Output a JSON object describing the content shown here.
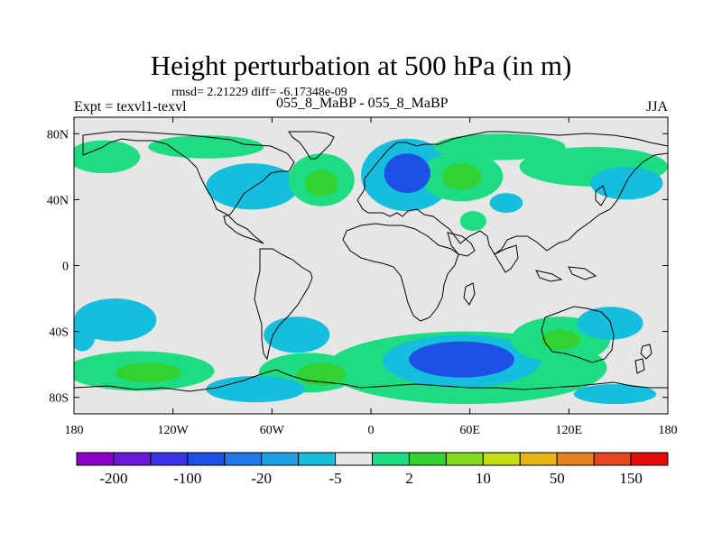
{
  "chart_data": {
    "type": "heatmap",
    "title": "Height perturbation at 500 hPa (in m)",
    "stats": "rmsd= 2.21229 diff= -6.17348e-09",
    "experiment": "Expt = texvl1-texvl",
    "cases": "055_8_MaBP - 055_8_MaBP",
    "season": "JJA",
    "x_axis": {
      "range": [
        -180,
        180
      ],
      "ticks": [
        -180,
        -120,
        -60,
        0,
        60,
        120,
        180
      ],
      "tick_labels": [
        "180",
        "120W",
        "60W",
        "0",
        "60E",
        "120E",
        "180"
      ]
    },
    "y_axis": {
      "range": [
        -90,
        90
      ],
      "ticks": [
        80,
        40,
        0,
        -40,
        -80
      ],
      "tick_labels": [
        "80N",
        "40N",
        "0",
        "40S",
        "80S"
      ]
    },
    "colorbar": {
      "colors": [
        "#8c00c8",
        "#6b18d8",
        "#3c32e6",
        "#1e50e6",
        "#1e78e6",
        "#1ea0e6",
        "#14bedc",
        "#e6e6e6",
        "#1edc82",
        "#32d232",
        "#82dc1e",
        "#c8dc14",
        "#e6b414",
        "#e6821e",
        "#e6461e",
        "#e60a0a"
      ],
      "labels": [
        "-200",
        "-100",
        "-20",
        "-5",
        "2",
        "10",
        "50",
        "150"
      ],
      "label_boundaries": [
        1,
        3,
        5,
        7,
        9,
        11,
        13,
        15
      ]
    },
    "anomalies": [
      {
        "lon": -162,
        "lat": 66,
        "rlon": 22,
        "rlat": 10,
        "level": 2
      },
      {
        "lon": -100,
        "lat": 72,
        "rlon": 35,
        "rlat": 7,
        "level": 2
      },
      {
        "lon": -72,
        "lat": 48,
        "rlon": 28,
        "rlat": 14,
        "level": -5
      },
      {
        "lon": -30,
        "lat": 52,
        "rlon": 20,
        "rlat": 16,
        "level": 2
      },
      {
        "lon": -30,
        "lat": 50,
        "rlon": 10,
        "rlat": 8,
        "level": 10
      },
      {
        "lon": 22,
        "lat": 55,
        "rlon": 28,
        "rlat": 22,
        "level": -5
      },
      {
        "lon": 22,
        "lat": 56,
        "rlon": 14,
        "rlat": 12,
        "level": -20
      },
      {
        "lon": 55,
        "lat": 54,
        "rlon": 25,
        "rlat": 15,
        "level": 2
      },
      {
        "lon": 55,
        "lat": 54,
        "rlon": 12,
        "rlat": 8,
        "level": 10
      },
      {
        "lon": 78,
        "lat": 72,
        "rlon": 40,
        "rlat": 8,
        "level": 2
      },
      {
        "lon": 135,
        "lat": 60,
        "rlon": 45,
        "rlat": 12,
        "level": 2
      },
      {
        "lon": 155,
        "lat": 50,
        "rlon": 22,
        "rlat": 10,
        "level": -5
      },
      {
        "lon": 82,
        "lat": 38,
        "rlon": 10,
        "rlat": 6,
        "level": -5
      },
      {
        "lon": 62,
        "lat": 27,
        "rlon": 8,
        "rlat": 6,
        "level": 2
      },
      {
        "lon": -155,
        "lat": -33,
        "rlon": 25,
        "rlat": 13,
        "level": -5
      },
      {
        "lon": -140,
        "lat": -64,
        "rlon": 45,
        "rlat": 12,
        "level": 2
      },
      {
        "lon": -135,
        "lat": -65,
        "rlon": 20,
        "rlat": 6,
        "level": 10
      },
      {
        "lon": -70,
        "lat": -75,
        "rlon": 30,
        "rlat": 8,
        "level": -5
      },
      {
        "lon": -45,
        "lat": -42,
        "rlon": 20,
        "rlat": 11,
        "level": -5
      },
      {
        "lon": -38,
        "lat": -65,
        "rlon": 30,
        "rlat": 12,
        "level": 2
      },
      {
        "lon": -30,
        "lat": -66,
        "rlon": 15,
        "rlat": 7,
        "level": 10
      },
      {
        "lon": 58,
        "lat": -62,
        "rlon": 85,
        "rlat": 22,
        "level": 2
      },
      {
        "lon": 55,
        "lat": -58,
        "rlon": 48,
        "rlat": 16,
        "level": -5
      },
      {
        "lon": 55,
        "lat": -57,
        "rlon": 32,
        "rlat": 11,
        "level": -20
      },
      {
        "lon": 115,
        "lat": -45,
        "rlon": 30,
        "rlat": 14,
        "level": 2
      },
      {
        "lon": 115,
        "lat": -45,
        "rlon": 12,
        "rlat": 6,
        "level": 10
      },
      {
        "lon": 145,
        "lat": -35,
        "rlon": 20,
        "rlat": 10,
        "level": -5
      },
      {
        "lon": 148,
        "lat": -78,
        "rlon": 25,
        "rlat": 6,
        "level": -5
      },
      {
        "lon": -175,
        "lat": -42,
        "rlon": 8,
        "rlat": 10,
        "level": -5
      }
    ]
  }
}
